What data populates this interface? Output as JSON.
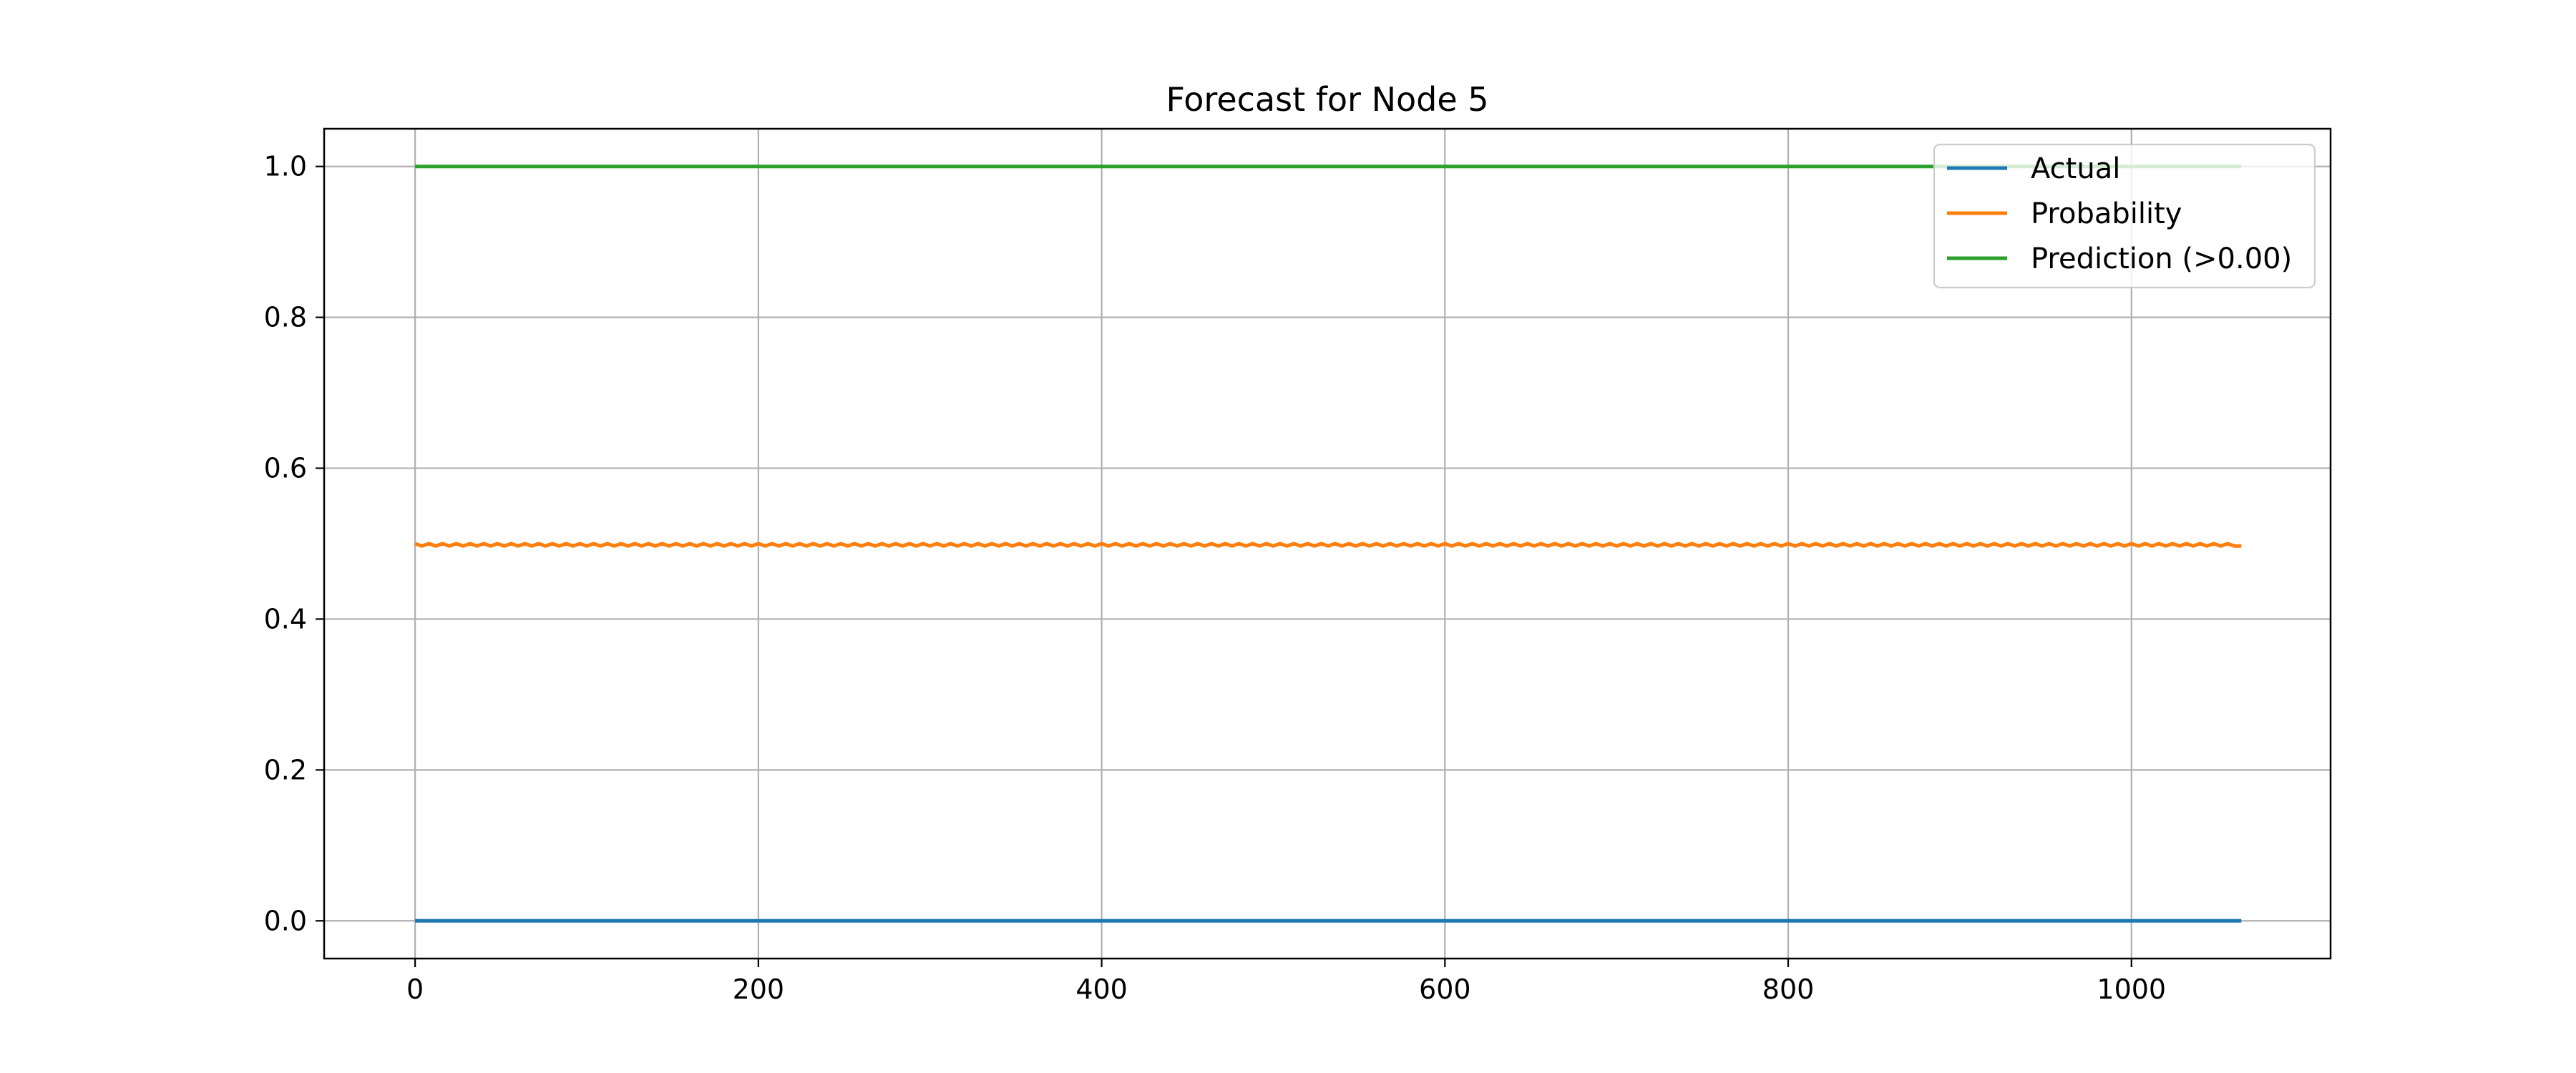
{
  "chart_data": {
    "type": "line",
    "title": "Forecast for Node 5",
    "xlabel": "",
    "ylabel": "",
    "xlim": [
      -53,
      1116
    ],
    "ylim": [
      -0.05,
      1.05
    ],
    "x_ticks": [
      0,
      200,
      400,
      600,
      800,
      1000
    ],
    "x_tick_labels": [
      "0",
      "200",
      "400",
      "600",
      "800",
      "1000"
    ],
    "y_ticks": [
      0.0,
      0.2,
      0.4,
      0.6,
      0.8,
      1.0
    ],
    "y_tick_labels": [
      "0.0",
      "0.2",
      "0.4",
      "0.6",
      "0.8",
      "1.0"
    ],
    "grid": true,
    "legend_position": "top-right",
    "x_range": [
      0,
      1064
    ],
    "series": [
      {
        "name": "Actual",
        "color": "#1f77b4",
        "description_pattern": "constant",
        "x": [
          0,
          1064
        ],
        "y": [
          0.0,
          0.0
        ]
      },
      {
        "name": "Probability",
        "color": "#ff7f0e",
        "pattern": "oscillating",
        "base_value": 0.4985,
        "amplitude": 0.0015,
        "period": 8,
        "x": [
          0,
          1064
        ],
        "y": [
          0.5,
          0.497
        ]
      },
      {
        "name": "Prediction (>0.00)",
        "color": "#2ca02c",
        "x": [
          0,
          1064
        ],
        "y": [
          1.0,
          1.0
        ]
      }
    ]
  }
}
